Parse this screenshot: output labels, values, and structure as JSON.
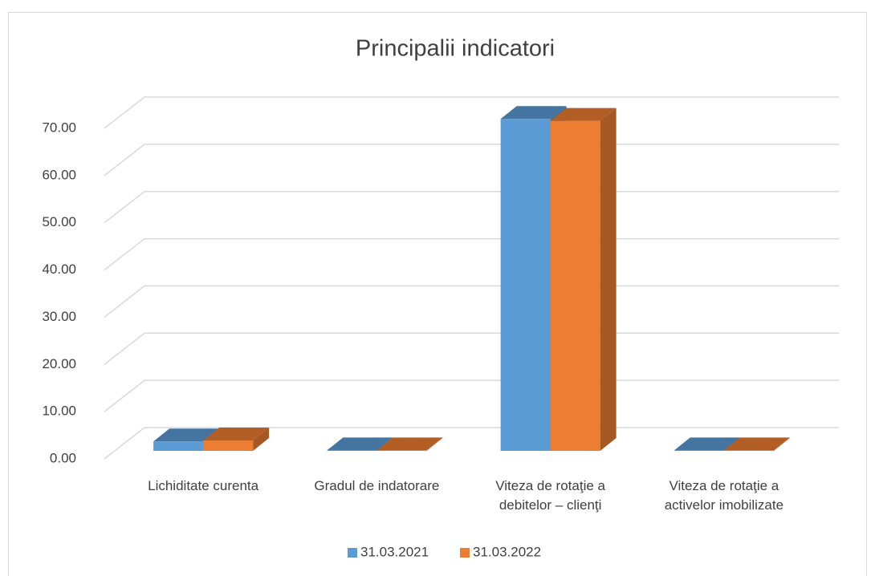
{
  "chart_data": {
    "type": "bar3d",
    "title": "Principalii indicatori",
    "categories": [
      "Lichiditate curenta",
      "Gradul de indatorare",
      "Viteza de rotaţie a debitelor – clienţi",
      "Viteza de rotaţie a activelor imobilizate"
    ],
    "series": [
      {
        "name": "31.03.2021",
        "color": "#5b9bd5",
        "values": [
          2.0,
          0.1,
          70.3,
          0.1
        ]
      },
      {
        "name": "31.03.2022",
        "color": "#ed7d31",
        "values": [
          2.2,
          0.1,
          69.9,
          0.1
        ]
      }
    ],
    "ylim": [
      0,
      70
    ],
    "yticks": [
      {
        "value": 0,
        "label": "0.00"
      },
      {
        "value": 10,
        "label": "10.00"
      },
      {
        "value": 20,
        "label": "20.00"
      },
      {
        "value": 30,
        "label": "30.00"
      },
      {
        "value": 40,
        "label": "40.00"
      },
      {
        "value": 50,
        "label": "50.00"
      },
      {
        "value": 60,
        "label": "60.00"
      },
      {
        "value": 70,
        "label": "70.00"
      }
    ],
    "grid": true,
    "legend": "bottom"
  }
}
